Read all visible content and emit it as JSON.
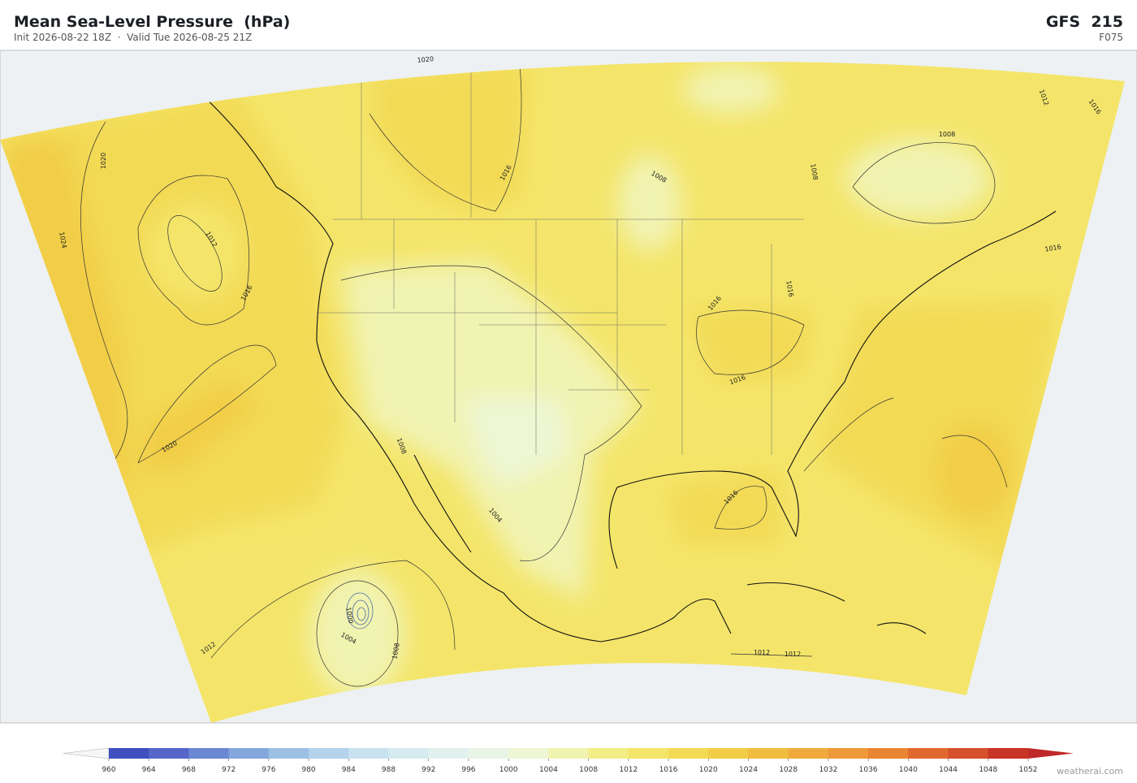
{
  "header": {
    "title": "Mean Sea-Level Pressure  (hPa)",
    "subtitle": "Init 2026-08-22 18Z  ·  Valid Tue 2026-08-25 21Z",
    "model": "GFS  215",
    "forecast_hour": "F075"
  },
  "map": {
    "contour_labels": [
      1020,
      1024,
      1012,
      1016,
      1020,
      1020,
      1016,
      1016,
      1008,
      1016,
      1016,
      1012,
      1016,
      1016,
      1008,
      1004,
      1008,
      1000,
      1004,
      1008,
      1012,
      1012,
      1012,
      1016,
      1008
    ]
  },
  "colorbar": {
    "ticks": [
      960,
      964,
      968,
      972,
      976,
      980,
      984,
      988,
      992,
      996,
      1000,
      1004,
      1008,
      1012,
      1016,
      1020,
      1024,
      1028,
      1032,
      1036,
      1040,
      1044,
      1048,
      1052
    ],
    "colors": [
      "#3f4fbf",
      "#5566c8",
      "#6a87d4",
      "#84a7dc",
      "#9cc0e4",
      "#b3d3ec",
      "#c8e3ef",
      "#d6ebf0",
      "#e1f1ee",
      "#e8f4e6",
      "#eef6d4",
      "#f1f3b0",
      "#f3ed86",
      "#f4e56a",
      "#f3da55",
      "#f2cd47",
      "#f1bd40",
      "#f0aa3c",
      "#ee9838",
      "#ea8533",
      "#e1692f",
      "#d5502b",
      "#c83426"
    ],
    "under_color": "#f4f6f8",
    "over_color": "#c0282a"
  },
  "footer": {
    "credit": "weatherai.com"
  }
}
